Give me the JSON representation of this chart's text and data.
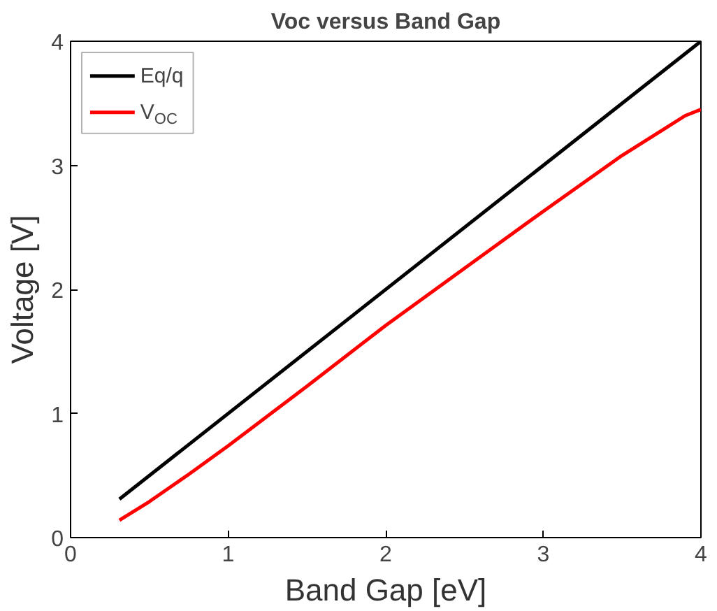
{
  "chart_data": {
    "type": "line",
    "title": "Voc versus Band Gap",
    "xlabel": "Band Gap [eV]",
    "ylabel": "Voltage [V]",
    "xlim": [
      0,
      4
    ],
    "ylim": [
      0,
      4
    ],
    "xticks": [
      0,
      1,
      2,
      3,
      4
    ],
    "yticks": [
      0,
      1,
      2,
      3,
      4
    ],
    "grid": false,
    "legend": "top left",
    "series": [
      {
        "name": "Eq/q",
        "color": "#000000",
        "x": [
          0.31,
          4
        ],
        "values": [
          0.31,
          4
        ]
      },
      {
        "name": "V$_{OC}$",
        "color": "#ff0000",
        "x": [
          0.31,
          0.5,
          0.75,
          1,
          1.5,
          2,
          2.5,
          3,
          3.5,
          3.75,
          3.9,
          4
        ],
        "values": [
          0.14,
          0.29,
          0.51,
          0.74,
          1.22,
          1.71,
          2.17,
          2.63,
          3.08,
          3.28,
          3.4,
          3.45
        ]
      }
    ]
  }
}
